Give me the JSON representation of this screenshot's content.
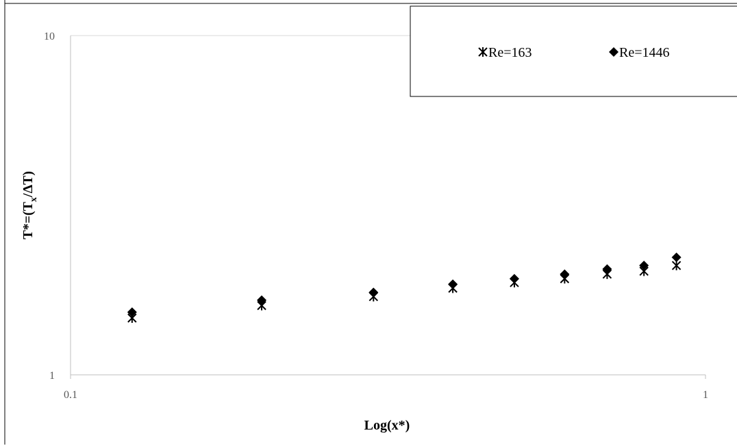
{
  "chart_data": {
    "type": "scatter",
    "xlabel": "Log(x*)",
    "ylabel_main": "T*=(T",
    "ylabel_sub": "x",
    "ylabel_end": "/ΔT)",
    "x_scale": "log",
    "y_scale": "log",
    "xlim": [
      0.1,
      1
    ],
    "ylim": [
      1,
      10
    ],
    "x_ticks": [
      "0.1",
      "1"
    ],
    "y_ticks": [
      "1",
      "10"
    ],
    "grid": "horizontal-major",
    "legend_position": "top-right",
    "series": [
      {
        "name": "Re=163",
        "marker": "star-x",
        "color": "#000000",
        "x": [
          0.125,
          0.2,
          0.3,
          0.4,
          0.5,
          0.6,
          0.7,
          0.8,
          0.9
        ],
        "y": [
          1.47,
          1.6,
          1.7,
          1.8,
          1.87,
          1.92,
          1.98,
          2.02,
          2.1
        ]
      },
      {
        "name": "Re=1446",
        "marker": "diamond",
        "color": "#000000",
        "x": [
          0.125,
          0.2,
          0.3,
          0.4,
          0.5,
          0.6,
          0.7,
          0.8,
          0.9
        ],
        "y": [
          1.53,
          1.66,
          1.75,
          1.85,
          1.92,
          1.98,
          2.05,
          2.1,
          2.22
        ]
      }
    ]
  }
}
